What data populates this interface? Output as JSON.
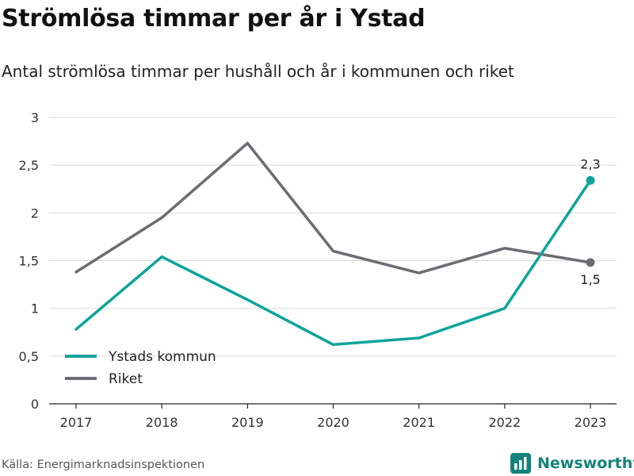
{
  "chart_data": {
    "type": "line",
    "title": "Strömlösa timmar per år i Ystad",
    "subtitle": "Antal strömlösa timmar per hushåll och år i kommunen och riket",
    "x": [
      "2017",
      "2018",
      "2019",
      "2020",
      "2021",
      "2022",
      "2023"
    ],
    "ylim": [
      0,
      3
    ],
    "yticks": [
      "0",
      "0,5",
      "1",
      "1,5",
      "2",
      "2,5",
      "3"
    ],
    "ytick_values": [
      0,
      0.5,
      1,
      1.5,
      2,
      2.5,
      3
    ],
    "grid": true,
    "legend_position": "bottom-left",
    "series": [
      {
        "name": "Ystads kommun",
        "color": "#0fa39a",
        "values": [
          0.78,
          1.54,
          1.09,
          0.62,
          0.69,
          1.0,
          2.34
        ],
        "end_label": "2,3"
      },
      {
        "name": "Riket",
        "color": "#6e6c72",
        "values": [
          1.38,
          1.95,
          2.73,
          1.6,
          1.37,
          1.63,
          1.48
        ],
        "end_label": "1,5"
      }
    ],
    "source": "Källa: Energimarknadsinspektionen"
  },
  "brand": {
    "name": "Newsworthy",
    "color": "#13827a"
  }
}
